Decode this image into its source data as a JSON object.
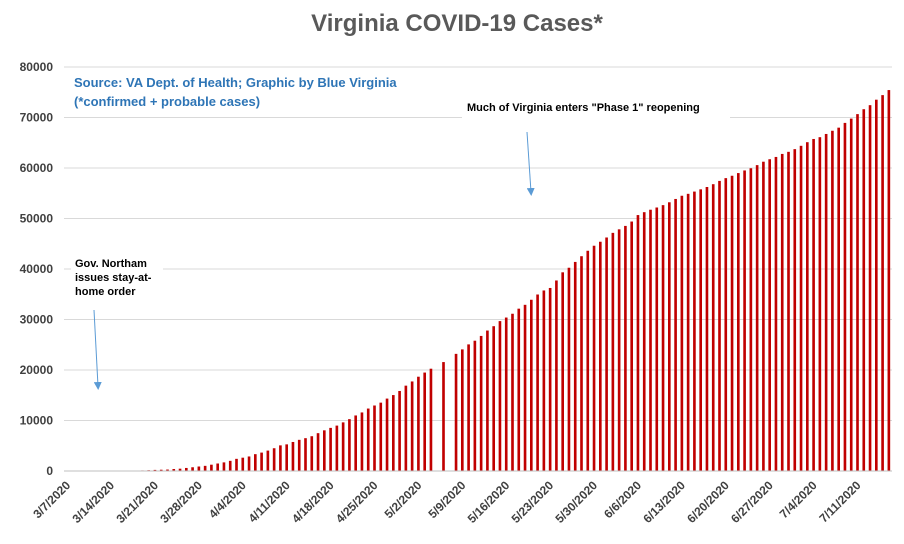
{
  "chart_data": {
    "type": "bar",
    "title": "Virginia COVID-19 Cases*",
    "source_line1": "Source: VA Dept. of Health; Graphic by Blue Virginia",
    "source_line2": "(*confirmed + probable cases)",
    "annotations": [
      {
        "lines": [
          "Gov. Northam",
          "issues stay-at-",
          "home order"
        ],
        "date": "3/30/2020"
      },
      {
        "lines": [
          "Much of Virginia enters \"Phase 1\" reopening"
        ],
        "date": "5/15/2020"
      }
    ],
    "start_date": "3/7/2020",
    "x_tick_labels": [
      "3/7/2020",
      "3/14/2020",
      "3/21/2020",
      "3/28/2020",
      "4/4/2020",
      "4/11/2020",
      "4/18/2020",
      "4/25/2020",
      "5/2/2020",
      "5/9/2020",
      "5/16/2020",
      "5/23/2020",
      "5/30/2020",
      "6/6/2020",
      "6/13/2020",
      "6/20/2020",
      "6/27/2020",
      "7/4/2020",
      "7/11/2020"
    ],
    "y_ticks": [
      0,
      10000,
      20000,
      30000,
      40000,
      50000,
      60000,
      70000,
      80000
    ],
    "ylim": [
      0,
      80000
    ],
    "bar_color": "#c00000",
    "grid": true,
    "values": [
      2,
      2,
      2,
      3,
      9,
      17,
      30,
      41,
      45,
      67,
      77,
      99,
      114,
      152,
      219,
      254,
      290,
      391,
      460,
      604,
      739,
      890,
      1020,
      1250,
      1484,
      1706,
      2012,
      2407,
      2637,
      2878,
      3333,
      3645,
      4042,
      4509,
      5077,
      5274,
      5747,
      6171,
      6500,
      6889,
      7491,
      8053,
      8537,
      8990,
      9630,
      10266,
      10998,
      11594,
      12366,
      12970,
      13535,
      14339,
      15036,
      15846,
      16901,
      17731,
      18671,
      19492,
      20256,
      null,
      21570,
      null,
      23196,
      24081,
      25070,
      25800,
      26746,
      27813,
      28672,
      29683,
      30388,
      31140,
      32145,
      32908,
      33908,
      34950,
      35749,
      36244,
      37727,
      39342,
      40249,
      41401,
      42533,
      43611,
      44607,
      45398,
      46239,
      47156,
      47856,
      48532,
      49397,
      50681,
      51251,
      51738,
      52177,
      52647,
      53211,
      53869,
      54506,
      54886,
      55331,
      55775,
      56238,
      56793,
      57443,
      57994,
      58465,
      58994,
      59514,
      59946,
      60570,
      61247,
      61736,
      62189,
      62787,
      63203,
      63735,
      64393,
      65109,
      65748,
      66102,
      66740,
      67375,
      67988,
      68931,
      69782,
      70670,
      71642,
      72443,
      73527,
      74431,
      75433
    ]
  }
}
